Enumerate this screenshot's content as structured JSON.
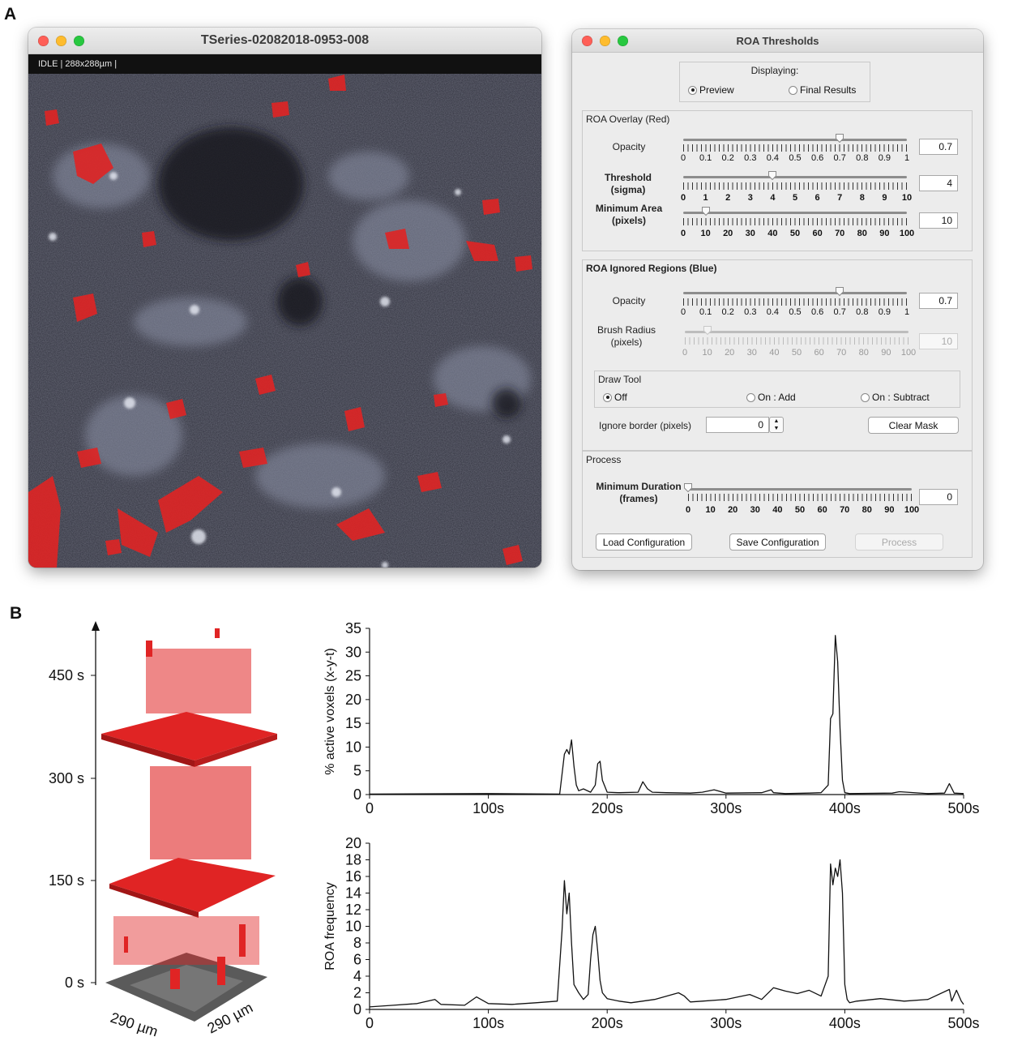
{
  "panels": {
    "a_letter": "A",
    "b_letter": "B"
  },
  "viewer": {
    "title": "TSeries-02082018-0953-008",
    "status": "IDLE | 288x288µm |"
  },
  "roa_dialog": {
    "title": "ROA Thresholds",
    "displaying": {
      "label": "Displaying:",
      "options": [
        "Preview",
        "Final Results"
      ],
      "selected": "Preview"
    },
    "overlay": {
      "title": "ROA Overlay (Red)",
      "opacity_label": "Opacity",
      "opacity_value": "0.7",
      "opacity_ticks": [
        "0",
        "0.1",
        "0.2",
        "0.3",
        "0.4",
        "0.5",
        "0.6",
        "0.7",
        "0.8",
        "0.9",
        "1"
      ],
      "opacity_fraction": 0.7,
      "threshold_label_1": "Threshold",
      "threshold_label_2": "(sigma)",
      "threshold_value": "4",
      "threshold_ticks": [
        "0",
        "1",
        "2",
        "3",
        "4",
        "5",
        "6",
        "7",
        "8",
        "9",
        "10"
      ],
      "threshold_fraction": 0.4,
      "min_area_label_1": "Minimum Area",
      "min_area_label_2": "(pixels)",
      "min_area_value": "10",
      "min_area_ticks": [
        "0",
        "10",
        "20",
        "30",
        "40",
        "50",
        "60",
        "70",
        "80",
        "90",
        "100"
      ],
      "min_area_fraction": 0.1
    },
    "ignored": {
      "title": "ROA Ignored Regions (Blue)",
      "opacity_label": "Opacity",
      "opacity_value": "0.7",
      "opacity_fraction": 0.7,
      "brush_label_1": "Brush Radius",
      "brush_label_2": "(pixels)",
      "brush_value": "10",
      "brush_fraction": 0.1,
      "draw_tool": {
        "title": "Draw Tool",
        "options": [
          "Off",
          "On : Add",
          "On : Subtract"
        ],
        "selected": "Off"
      },
      "ignore_border_label": "Ignore border (pixels)",
      "ignore_border_value": "0",
      "clear_mask_label": "Clear Mask"
    },
    "process": {
      "title": "Process",
      "min_duration_label_1": "Minimum Duration",
      "min_duration_label_2": "(frames)",
      "min_duration_value": "0",
      "min_duration_fraction": 0.0,
      "load_label": "Load Configuration",
      "save_label": "Save Configuration",
      "process_label": "Process"
    }
  },
  "volume_render": {
    "time_ticks": [
      "0 s",
      "150 s",
      "300 s",
      "450 s"
    ],
    "x_dim_label": "290 µm",
    "y_dim_label": "290 µm",
    "colors": {
      "roa": "#e02424",
      "floor": "#555555"
    }
  },
  "chart_data": [
    {
      "type": "line",
      "ylabel": "% active voxels (x-y-t)",
      "xlabel": "",
      "xlim": [
        0,
        500
      ],
      "ylim": [
        0,
        35
      ],
      "x_tick_labels": [
        "0",
        "100s",
        "200s",
        "300s",
        "400s",
        "500s"
      ],
      "y_tick_labels": [
        "0",
        "5",
        "10",
        "15",
        "20",
        "25",
        "30",
        "35"
      ],
      "series": [
        {
          "x": [
            0,
            100,
            160,
            164,
            166,
            168,
            170,
            172,
            174,
            176,
            180,
            186,
            190,
            192,
            194,
            196,
            200,
            210,
            226,
            230,
            234,
            238,
            250,
            270,
            280,
            290,
            300,
            330,
            338,
            340,
            350,
            370,
            380,
            386,
            388,
            390,
            392,
            394,
            396,
            398,
            400,
            404,
            440,
            446,
            470,
            484,
            488,
            492,
            500
          ],
          "y": [
            0.1,
            0.2,
            0.1,
            8.5,
            9.5,
            8.5,
            11.5,
            6,
            2,
            0.8,
            1.2,
            0.5,
            2,
            6.5,
            7,
            3,
            0.5,
            0.4,
            0.5,
            2.7,
            1.2,
            0.5,
            0.4,
            0.3,
            0.5,
            1,
            0.3,
            0.4,
            1,
            0.4,
            0.2,
            0.3,
            0.4,
            2,
            16,
            17,
            33.5,
            28,
            14,
            3,
            0.4,
            0.2,
            0.3,
            0.6,
            0.2,
            0.3,
            2.3,
            0.3,
            0.2
          ]
        }
      ]
    },
    {
      "type": "line",
      "ylabel": "ROA frequency",
      "xlabel": "",
      "xlim": [
        0,
        500
      ],
      "ylim": [
        0,
        20
      ],
      "x_tick_labels": [
        "0",
        "100s",
        "200s",
        "300s",
        "400s",
        "500s"
      ],
      "y_tick_labels": [
        "0",
        "2",
        "4",
        "6",
        "8",
        "10",
        "12",
        "14",
        "16",
        "18",
        "20"
      ],
      "series": [
        {
          "x": [
            0,
            20,
            40,
            55,
            60,
            80,
            90,
            100,
            120,
            140,
            158,
            162,
            164,
            166,
            168,
            170,
            172,
            174,
            176,
            180,
            184,
            186,
            188,
            190,
            192,
            194,
            196,
            200,
            210,
            220,
            240,
            260,
            265,
            270,
            280,
            300,
            310,
            320,
            330,
            340,
            350,
            360,
            370,
            380,
            386,
            388,
            390,
            392,
            394,
            396,
            398,
            400,
            402,
            404,
            410,
            430,
            450,
            470,
            488,
            490,
            494,
            498,
            500
          ],
          "y": [
            0.3,
            0.5,
            0.7,
            1.2,
            0.6,
            0.5,
            1.5,
            0.7,
            0.6,
            0.8,
            1.0,
            9.5,
            15.5,
            11.5,
            14,
            8,
            3,
            2.5,
            2.0,
            1.2,
            1.8,
            6,
            9,
            10,
            7,
            3.5,
            2,
            1.3,
            1.0,
            0.8,
            1.2,
            2.0,
            1.6,
            0.9,
            1.0,
            1.2,
            1.5,
            1.8,
            1.2,
            2.6,
            2.2,
            1.9,
            2.3,
            1.6,
            4,
            17.5,
            15,
            17,
            16,
            18,
            14,
            3,
            1.2,
            0.8,
            1.0,
            1.3,
            1.0,
            1.2,
            2.4,
            1.0,
            2.3,
            1.0,
            0.6
          ]
        }
      ]
    }
  ]
}
